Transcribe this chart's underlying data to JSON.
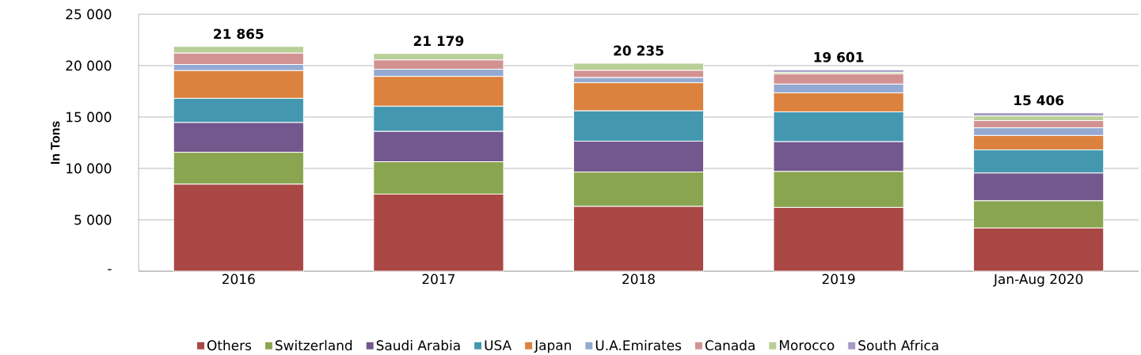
{
  "chart_data": {
    "type": "bar",
    "stacked": true,
    "ylabel": "In Tons",
    "categories": [
      "2016",
      "2017",
      "2018",
      "2019",
      "Jan-Aug 2020"
    ],
    "series": [
      {
        "name": "Others",
        "color": "#a94744",
        "values": [
          8465,
          7500,
          6300,
          6200,
          4200
        ]
      },
      {
        "name": "Switzerland",
        "color": "#8aa54f",
        "values": [
          3100,
          3150,
          3350,
          3500,
          2650
        ]
      },
      {
        "name": "Saudi Arabia",
        "color": "#72588d",
        "values": [
          2900,
          2950,
          3000,
          2900,
          2700
        ]
      },
      {
        "name": "USA",
        "color": "#4398b0",
        "values": [
          2350,
          2450,
          2950,
          2900,
          2250
        ]
      },
      {
        "name": "Japan",
        "color": "#db823e",
        "values": [
          2700,
          2900,
          2735,
          1850,
          1400
        ]
      },
      {
        "name": "U.A.Emirates",
        "color": "#94aad2",
        "values": [
          600,
          700,
          500,
          850,
          750
        ]
      },
      {
        "name": "Canada",
        "color": "#d39292",
        "values": [
          1100,
          900,
          700,
          1000,
          700
        ]
      },
      {
        "name": "Morocco",
        "color": "#b9cf98",
        "values": [
          650,
          629,
          700,
          150,
          450
        ]
      },
      {
        "name": "South Africa",
        "color": "#a699c3",
        "values": [
          0,
          0,
          0,
          250,
          306
        ]
      }
    ],
    "totals": [
      "21 865",
      "21 179",
      "20 235",
      "19 601",
      "15 406"
    ],
    "ylim": [
      0,
      25000
    ],
    "yticks": [
      {
        "value": 0,
        "label": "-"
      },
      {
        "value": 5000,
        "label": "5 000"
      },
      {
        "value": 10000,
        "label": "10 000"
      },
      {
        "value": 15000,
        "label": "15 000"
      },
      {
        "value": 20000,
        "label": "20 000"
      },
      {
        "value": 25000,
        "label": "25 000"
      }
    ],
    "grid": "y",
    "legend": "bottom"
  }
}
